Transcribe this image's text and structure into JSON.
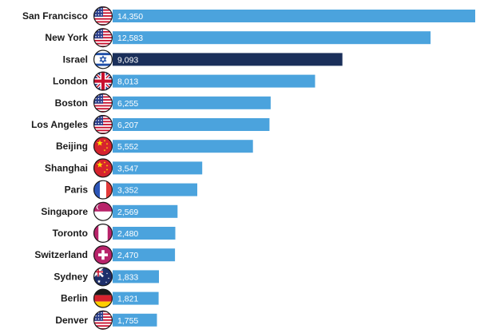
{
  "chart_data": {
    "type": "bar",
    "orientation": "horizontal",
    "categories": [
      "San Francisco",
      "New York",
      "Israel",
      "London",
      "Boston",
      "Los Angeles",
      "Beijing",
      "Shanghai",
      "Paris",
      "Singapore",
      "Toronto",
      "Switzerland",
      "Sydney",
      "Berlin",
      "Denver"
    ],
    "values": [
      14350,
      12583,
      9093,
      8013,
      6255,
      6207,
      5552,
      3547,
      3352,
      2569,
      2480,
      2470,
      1833,
      1821,
      1755
    ],
    "value_labels": [
      "14,350",
      "12,583",
      "9,093",
      "8,013",
      "6,255",
      "6,207",
      "5,552",
      "3,547",
      "3,352",
      "2,569",
      "2,480",
      "2,470",
      "1,833",
      "1,821",
      "1,755"
    ],
    "flags": [
      "usa",
      "usa",
      "israel",
      "uk",
      "usa",
      "usa",
      "china",
      "china",
      "france",
      "singapore",
      "canada",
      "switzerland",
      "australia",
      "germany",
      "usa"
    ],
    "highlight": "Israel",
    "grid": false,
    "title": "",
    "xlabel": "",
    "ylabel": ""
  },
  "colors": {
    "bar": "#4ba3dd",
    "highlight_bar": "#1a2f5a",
    "label_text": "#1a1a1a",
    "value_text": "#ffffff"
  }
}
